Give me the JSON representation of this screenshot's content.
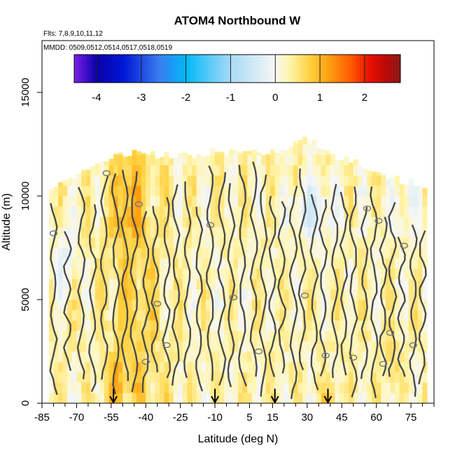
{
  "chart_data": {
    "type": "heatmap",
    "title": "ATOM4 Northbound W",
    "flights_label": "Flts: 7,8,9,10,11,12",
    "dates_label": "MMDD: 0509,0512,0514,0517,0518,0519",
    "xlabel": "Latitude (deg N)",
    "ylabel": "Altitude (m)",
    "xlim": [
      -85,
      85
    ],
    "ylim": [
      0,
      17500
    ],
    "xticks": [
      -85,
      -70,
      -55,
      -40,
      -25,
      -10,
      5,
      15,
      30,
      45,
      60,
      75
    ],
    "yticks": [
      0,
      5000,
      10000,
      15000
    ],
    "colorbar": {
      "range": [
        -4.5,
        2.8
      ],
      "ticks": [
        -4,
        -3,
        -2,
        -1,
        0,
        1,
        2
      ],
      "colors": [
        "#7a20e8",
        "#0a00a8",
        "#0018d6",
        "#3a7cf0",
        "#00b8f8",
        "#a8daf5",
        "#f7f7f5",
        "#fff6b0",
        "#ffcf3a",
        "#ff9e10",
        "#ff5a00",
        "#e81000",
        "#b80a0a",
        "#8b1a1a"
      ]
    },
    "arrow_latitudes": [
      -54,
      -10,
      16,
      39
    ],
    "field": {
      "lat_range": [
        -82,
        82
      ],
      "alt_range": [
        0,
        13000
      ],
      "description": "vertical velocity W (m/s), mostly weak positive 0 to 1, orange maxima near -50 to -35 low/mid altitude, faint negative blue patches aloft",
      "top_altitude_by_lat": [
        [
          -82,
          10500
        ],
        [
          -75,
          10700
        ],
        [
          -70,
          11000
        ],
        [
          -60,
          11500
        ],
        [
          -55,
          11900
        ],
        [
          -45,
          12100
        ],
        [
          -35,
          12000
        ],
        [
          -20,
          12000
        ],
        [
          -10,
          12200
        ],
        [
          0,
          12100
        ],
        [
          10,
          12100
        ],
        [
          20,
          12300
        ],
        [
          28,
          12700
        ],
        [
          33,
          12600
        ],
        [
          40,
          12000
        ],
        [
          50,
          11700
        ],
        [
          60,
          11000
        ],
        [
          70,
          10800
        ],
        [
          78,
          10600
        ],
        [
          82,
          10300
        ]
      ]
    }
  }
}
